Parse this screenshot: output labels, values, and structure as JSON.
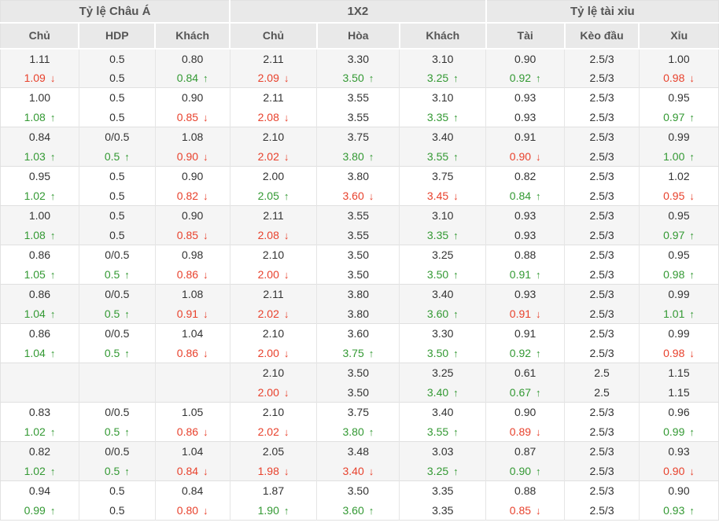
{
  "table": {
    "group_headers": [
      {
        "label": "Tỷ lệ Châu Á",
        "span": 3
      },
      {
        "label": "1X2",
        "span": 3
      },
      {
        "label": "Tỷ lệ tài xỉu",
        "span": 3
      }
    ],
    "column_headers": [
      "Chủ",
      "HDP",
      "Khách",
      "Chủ",
      "Hòa",
      "Khách",
      "Tài",
      "Kèo đầu",
      "Xỉu"
    ]
  },
  "icons": {
    "up_arrow": "↑",
    "down_arrow": "↓"
  },
  "colors": {
    "text_default": "#333333",
    "text_up": "#339933",
    "text_down": "#e8412c",
    "header_bg": "#e9e9e9",
    "header_text": "#555555",
    "row_alt_bg": "#f5f5f5",
    "border": "#e0e0e0"
  },
  "rows": [
    {
      "bg": "gray",
      "top": [
        [
          "1.11",
          "k",
          ""
        ],
        [
          "0.5",
          "k",
          ""
        ],
        [
          "0.80",
          "k",
          ""
        ],
        [
          "2.11",
          "k",
          ""
        ],
        [
          "3.30",
          "k",
          ""
        ],
        [
          "3.10",
          "k",
          ""
        ],
        [
          "0.90",
          "k",
          ""
        ],
        [
          "2.5/3",
          "k",
          ""
        ],
        [
          "1.00",
          "k",
          ""
        ]
      ],
      "bot": [
        [
          "1.09",
          "r",
          "d"
        ],
        [
          "0.5",
          "k",
          ""
        ],
        [
          "0.84",
          "g",
          "u"
        ],
        [
          "2.09",
          "r",
          "d"
        ],
        [
          "3.50",
          "g",
          "u"
        ],
        [
          "3.25",
          "g",
          "u"
        ],
        [
          "0.92",
          "g",
          "u"
        ],
        [
          "2.5/3",
          "k",
          ""
        ],
        [
          "0.98",
          "r",
          "d"
        ]
      ]
    },
    {
      "bg": "white",
      "top": [
        [
          "1.00",
          "k",
          ""
        ],
        [
          "0.5",
          "k",
          ""
        ],
        [
          "0.90",
          "k",
          ""
        ],
        [
          "2.11",
          "k",
          ""
        ],
        [
          "3.55",
          "k",
          ""
        ],
        [
          "3.10",
          "k",
          ""
        ],
        [
          "0.93",
          "k",
          ""
        ],
        [
          "2.5/3",
          "k",
          ""
        ],
        [
          "0.95",
          "k",
          ""
        ]
      ],
      "bot": [
        [
          "1.08",
          "g",
          "u"
        ],
        [
          "0.5",
          "k",
          ""
        ],
        [
          "0.85",
          "r",
          "d"
        ],
        [
          "2.08",
          "r",
          "d"
        ],
        [
          "3.55",
          "k",
          ""
        ],
        [
          "3.35",
          "g",
          "u"
        ],
        [
          "0.93",
          "k",
          ""
        ],
        [
          "2.5/3",
          "k",
          ""
        ],
        [
          "0.97",
          "g",
          "u"
        ]
      ]
    },
    {
      "bg": "gray",
      "top": [
        [
          "0.84",
          "k",
          ""
        ],
        [
          "0/0.5",
          "k",
          ""
        ],
        [
          "1.08",
          "k",
          ""
        ],
        [
          "2.10",
          "k",
          ""
        ],
        [
          "3.75",
          "k",
          ""
        ],
        [
          "3.40",
          "k",
          ""
        ],
        [
          "0.91",
          "k",
          ""
        ],
        [
          "2.5/3",
          "k",
          ""
        ],
        [
          "0.99",
          "k",
          ""
        ]
      ],
      "bot": [
        [
          "1.03",
          "g",
          "u"
        ],
        [
          "0.5",
          "g",
          "u"
        ],
        [
          "0.90",
          "r",
          "d"
        ],
        [
          "2.02",
          "r",
          "d"
        ],
        [
          "3.80",
          "g",
          "u"
        ],
        [
          "3.55",
          "g",
          "u"
        ],
        [
          "0.90",
          "r",
          "d"
        ],
        [
          "2.5/3",
          "k",
          ""
        ],
        [
          "1.00",
          "g",
          "u"
        ]
      ]
    },
    {
      "bg": "white",
      "top": [
        [
          "0.95",
          "k",
          ""
        ],
        [
          "0.5",
          "k",
          ""
        ],
        [
          "0.90",
          "k",
          ""
        ],
        [
          "2.00",
          "k",
          ""
        ],
        [
          "3.80",
          "k",
          ""
        ],
        [
          "3.75",
          "k",
          ""
        ],
        [
          "0.82",
          "k",
          ""
        ],
        [
          "2.5/3",
          "k",
          ""
        ],
        [
          "1.02",
          "k",
          ""
        ]
      ],
      "bot": [
        [
          "1.02",
          "g",
          "u"
        ],
        [
          "0.5",
          "k",
          ""
        ],
        [
          "0.82",
          "r",
          "d"
        ],
        [
          "2.05",
          "g",
          "u"
        ],
        [
          "3.60",
          "r",
          "d"
        ],
        [
          "3.45",
          "r",
          "d"
        ],
        [
          "0.84",
          "g",
          "u"
        ],
        [
          "2.5/3",
          "k",
          ""
        ],
        [
          "0.95",
          "r",
          "d"
        ]
      ]
    },
    {
      "bg": "gray",
      "top": [
        [
          "1.00",
          "k",
          ""
        ],
        [
          "0.5",
          "k",
          ""
        ],
        [
          "0.90",
          "k",
          ""
        ],
        [
          "2.11",
          "k",
          ""
        ],
        [
          "3.55",
          "k",
          ""
        ],
        [
          "3.10",
          "k",
          ""
        ],
        [
          "0.93",
          "k",
          ""
        ],
        [
          "2.5/3",
          "k",
          ""
        ],
        [
          "0.95",
          "k",
          ""
        ]
      ],
      "bot": [
        [
          "1.08",
          "g",
          "u"
        ],
        [
          "0.5",
          "k",
          ""
        ],
        [
          "0.85",
          "r",
          "d"
        ],
        [
          "2.08",
          "r",
          "d"
        ],
        [
          "3.55",
          "k",
          ""
        ],
        [
          "3.35",
          "g",
          "u"
        ],
        [
          "0.93",
          "k",
          ""
        ],
        [
          "2.5/3",
          "k",
          ""
        ],
        [
          "0.97",
          "g",
          "u"
        ]
      ]
    },
    {
      "bg": "white",
      "top": [
        [
          "0.86",
          "k",
          ""
        ],
        [
          "0/0.5",
          "k",
          ""
        ],
        [
          "0.98",
          "k",
          ""
        ],
        [
          "2.10",
          "k",
          ""
        ],
        [
          "3.50",
          "k",
          ""
        ],
        [
          "3.25",
          "k",
          ""
        ],
        [
          "0.88",
          "k",
          ""
        ],
        [
          "2.5/3",
          "k",
          ""
        ],
        [
          "0.95",
          "k",
          ""
        ]
      ],
      "bot": [
        [
          "1.05",
          "g",
          "u"
        ],
        [
          "0.5",
          "g",
          "u"
        ],
        [
          "0.86",
          "r",
          "d"
        ],
        [
          "2.00",
          "r",
          "d"
        ],
        [
          "3.50",
          "k",
          ""
        ],
        [
          "3.50",
          "g",
          "u"
        ],
        [
          "0.91",
          "g",
          "u"
        ],
        [
          "2.5/3",
          "k",
          ""
        ],
        [
          "0.98",
          "g",
          "u"
        ]
      ]
    },
    {
      "bg": "gray",
      "top": [
        [
          "0.86",
          "k",
          ""
        ],
        [
          "0/0.5",
          "k",
          ""
        ],
        [
          "1.08",
          "k",
          ""
        ],
        [
          "2.11",
          "k",
          ""
        ],
        [
          "3.80",
          "k",
          ""
        ],
        [
          "3.40",
          "k",
          ""
        ],
        [
          "0.93",
          "k",
          ""
        ],
        [
          "2.5/3",
          "k",
          ""
        ],
        [
          "0.99",
          "k",
          ""
        ]
      ],
      "bot": [
        [
          "1.04",
          "g",
          "u"
        ],
        [
          "0.5",
          "g",
          "u"
        ],
        [
          "0.91",
          "r",
          "d"
        ],
        [
          "2.02",
          "r",
          "d"
        ],
        [
          "3.80",
          "k",
          ""
        ],
        [
          "3.60",
          "g",
          "u"
        ],
        [
          "0.91",
          "r",
          "d"
        ],
        [
          "2.5/3",
          "k",
          ""
        ],
        [
          "1.01",
          "g",
          "u"
        ]
      ]
    },
    {
      "bg": "white",
      "top": [
        [
          "0.86",
          "k",
          ""
        ],
        [
          "0/0.5",
          "k",
          ""
        ],
        [
          "1.04",
          "k",
          ""
        ],
        [
          "2.10",
          "k",
          ""
        ],
        [
          "3.60",
          "k",
          ""
        ],
        [
          "3.30",
          "k",
          ""
        ],
        [
          "0.91",
          "k",
          ""
        ],
        [
          "2.5/3",
          "k",
          ""
        ],
        [
          "0.99",
          "k",
          ""
        ]
      ],
      "bot": [
        [
          "1.04",
          "g",
          "u"
        ],
        [
          "0.5",
          "g",
          "u"
        ],
        [
          "0.86",
          "r",
          "d"
        ],
        [
          "2.00",
          "r",
          "d"
        ],
        [
          "3.75",
          "g",
          "u"
        ],
        [
          "3.50",
          "g",
          "u"
        ],
        [
          "0.92",
          "g",
          "u"
        ],
        [
          "2.5/3",
          "k",
          ""
        ],
        [
          "0.98",
          "r",
          "d"
        ]
      ]
    },
    {
      "bg": "gray",
      "top": [
        [
          "",
          "k",
          ""
        ],
        [
          "",
          "k",
          ""
        ],
        [
          "",
          "k",
          ""
        ],
        [
          "2.10",
          "k",
          ""
        ],
        [
          "3.50",
          "k",
          ""
        ],
        [
          "3.25",
          "k",
          ""
        ],
        [
          "0.61",
          "k",
          ""
        ],
        [
          "2.5",
          "k",
          ""
        ],
        [
          "1.15",
          "k",
          ""
        ]
      ],
      "bot": [
        [
          "",
          "k",
          ""
        ],
        [
          "",
          "k",
          ""
        ],
        [
          "",
          "k",
          ""
        ],
        [
          "2.00",
          "r",
          "d"
        ],
        [
          "3.50",
          "k",
          ""
        ],
        [
          "3.40",
          "g",
          "u"
        ],
        [
          "0.67",
          "g",
          "u"
        ],
        [
          "2.5",
          "k",
          ""
        ],
        [
          "1.15",
          "k",
          ""
        ]
      ]
    },
    {
      "bg": "white",
      "top": [
        [
          "0.83",
          "k",
          ""
        ],
        [
          "0/0.5",
          "k",
          ""
        ],
        [
          "1.05",
          "k",
          ""
        ],
        [
          "2.10",
          "k",
          ""
        ],
        [
          "3.75",
          "k",
          ""
        ],
        [
          "3.40",
          "k",
          ""
        ],
        [
          "0.90",
          "k",
          ""
        ],
        [
          "2.5/3",
          "k",
          ""
        ],
        [
          "0.96",
          "k",
          ""
        ]
      ],
      "bot": [
        [
          "1.02",
          "g",
          "u"
        ],
        [
          "0.5",
          "g",
          "u"
        ],
        [
          "0.86",
          "r",
          "d"
        ],
        [
          "2.02",
          "r",
          "d"
        ],
        [
          "3.80",
          "g",
          "u"
        ],
        [
          "3.55",
          "g",
          "u"
        ],
        [
          "0.89",
          "r",
          "d"
        ],
        [
          "2.5/3",
          "k",
          ""
        ],
        [
          "0.99",
          "g",
          "u"
        ]
      ]
    },
    {
      "bg": "gray",
      "top": [
        [
          "0.82",
          "k",
          ""
        ],
        [
          "0/0.5",
          "k",
          ""
        ],
        [
          "1.04",
          "k",
          ""
        ],
        [
          "2.05",
          "k",
          ""
        ],
        [
          "3.48",
          "k",
          ""
        ],
        [
          "3.03",
          "k",
          ""
        ],
        [
          "0.87",
          "k",
          ""
        ],
        [
          "2.5/3",
          "k",
          ""
        ],
        [
          "0.93",
          "k",
          ""
        ]
      ],
      "bot": [
        [
          "1.02",
          "g",
          "u"
        ],
        [
          "0.5",
          "g",
          "u"
        ],
        [
          "0.84",
          "r",
          "d"
        ],
        [
          "1.98",
          "r",
          "d"
        ],
        [
          "3.40",
          "r",
          "d"
        ],
        [
          "3.25",
          "g",
          "u"
        ],
        [
          "0.90",
          "g",
          "u"
        ],
        [
          "2.5/3",
          "k",
          ""
        ],
        [
          "0.90",
          "r",
          "d"
        ]
      ]
    },
    {
      "bg": "white",
      "top": [
        [
          "0.94",
          "k",
          ""
        ],
        [
          "0.5",
          "k",
          ""
        ],
        [
          "0.84",
          "k",
          ""
        ],
        [
          "1.87",
          "k",
          ""
        ],
        [
          "3.50",
          "k",
          ""
        ],
        [
          "3.35",
          "k",
          ""
        ],
        [
          "0.88",
          "k",
          ""
        ],
        [
          "2.5/3",
          "k",
          ""
        ],
        [
          "0.90",
          "k",
          ""
        ]
      ],
      "bot": [
        [
          "0.99",
          "g",
          "u"
        ],
        [
          "0.5",
          "k",
          ""
        ],
        [
          "0.80",
          "r",
          "d"
        ],
        [
          "1.90",
          "g",
          "u"
        ],
        [
          "3.60",
          "g",
          "u"
        ],
        [
          "3.35",
          "k",
          ""
        ],
        [
          "0.85",
          "r",
          "d"
        ],
        [
          "2.5/3",
          "k",
          ""
        ],
        [
          "0.93",
          "g",
          "u"
        ]
      ]
    }
  ]
}
